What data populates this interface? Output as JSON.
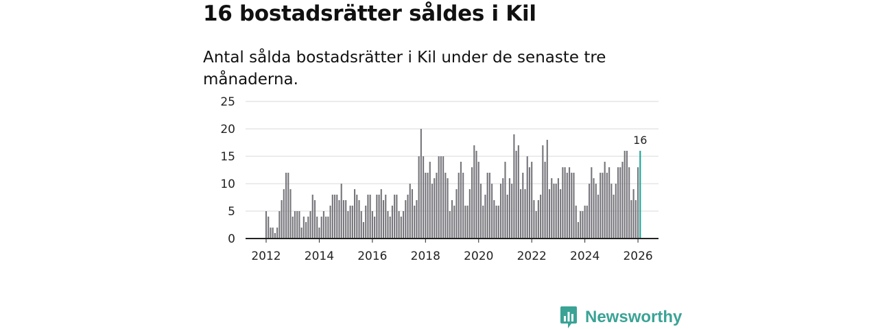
{
  "title": "16 bostadsrätter såldes i Kil",
  "subtitle": "Antal sålda bostadsrätter i Kil under de senaste tre månaderna.",
  "brand": {
    "name": "Newsworthy",
    "icon": "newsworthy-logo-icon",
    "color": "#3aa395"
  },
  "colors": {
    "bar": "#76757b",
    "highlight": "#1aa596",
    "grid": "#d9d9d9",
    "axis": "#222222"
  },
  "chart_data": {
    "type": "bar",
    "title": "16 bostadsrätter såldes i Kil",
    "subtitle": "Antal sålda bostadsrätter i Kil under de senaste tre månaderna.",
    "xlabel": "",
    "ylabel": "",
    "x_start": "2012-01",
    "ylim": [
      0,
      25
    ],
    "yticks": [
      0,
      5,
      10,
      15,
      20,
      25
    ],
    "xticks": [
      "2012",
      "2014",
      "2016",
      "2018",
      "2020",
      "2022",
      "2024",
      "2026"
    ],
    "grid": true,
    "highlight": {
      "index": 169,
      "label": "16"
    },
    "values": [
      5,
      4,
      2,
      2,
      1,
      2,
      5,
      7,
      9,
      12,
      12,
      9,
      4,
      5,
      5,
      5,
      2,
      4,
      3,
      4,
      5,
      8,
      7,
      4,
      2,
      4,
      5,
      4,
      4,
      6,
      8,
      8,
      8,
      7,
      10,
      7,
      7,
      5,
      6,
      6,
      9,
      8,
      7,
      5,
      3,
      6,
      8,
      8,
      5,
      4,
      8,
      8,
      9,
      7,
      8,
      5,
      4,
      6,
      8,
      8,
      5,
      4,
      5,
      7,
      8,
      10,
      9,
      6,
      7,
      15,
      20,
      15,
      12,
      12,
      14,
      10,
      11,
      12,
      15,
      15,
      15,
      12,
      11,
      5,
      7,
      6,
      9,
      12,
      14,
      12,
      6,
      6,
      9,
      13,
      17,
      16,
      14,
      10,
      6,
      8,
      12,
      12,
      10,
      7,
      6,
      6,
      10,
      11,
      14,
      8,
      11,
      10,
      19,
      16,
      17,
      9,
      12,
      9,
      15,
      13,
      14,
      7,
      5,
      7,
      8,
      17,
      14,
      18,
      9,
      11,
      10,
      10,
      11,
      9,
      13,
      13,
      12,
      13,
      12,
      12,
      6,
      3,
      5,
      5,
      6,
      6,
      10,
      13,
      11,
      10,
      8,
      12,
      12,
      14,
      12,
      13,
      10,
      8,
      10,
      13,
      13,
      14,
      16,
      16,
      13,
      7,
      9,
      7,
      13,
      16
    ]
  }
}
